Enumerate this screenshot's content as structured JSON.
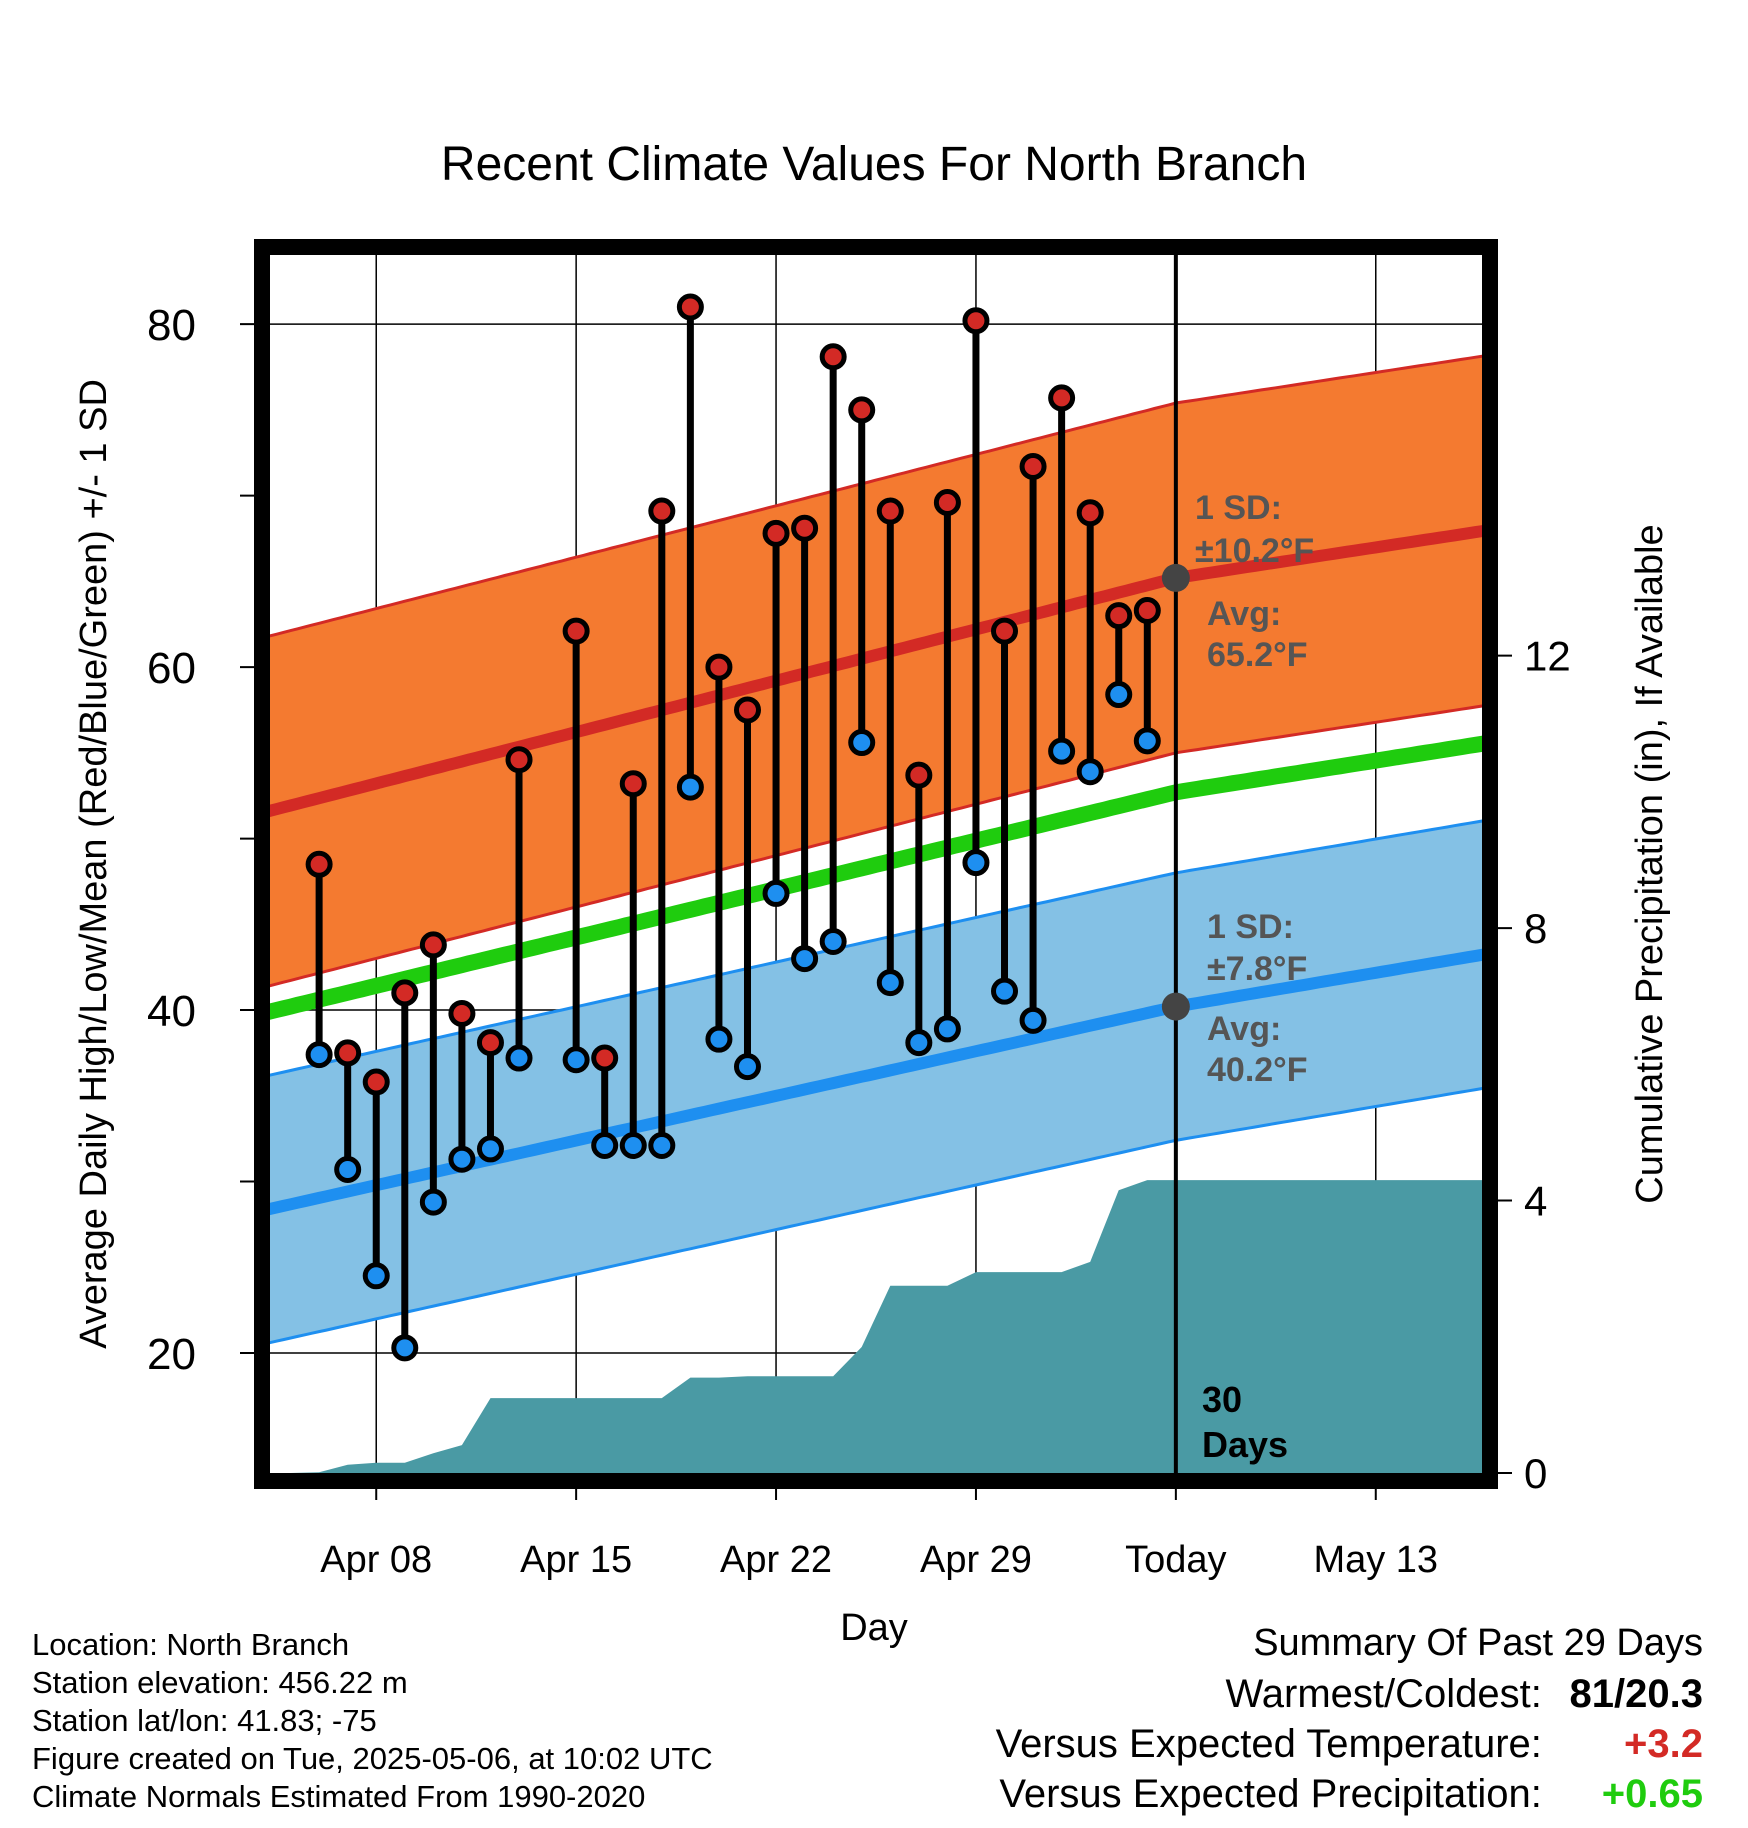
{
  "chart_data": {
    "type": "line",
    "title": "Recent Climate Values For North Branch",
    "xlabel": "Day",
    "ylabel": "Average Daily High/Low/Mean (Red/Blue/Green) +/- 1 SD",
    "y2label": "Cumulative Precipitation (in), If Available",
    "ylim": [
      13,
      84.5
    ],
    "y2lim": [
      0,
      18
    ],
    "y_ticks": [
      20,
      40,
      60,
      80
    ],
    "y2_ticks": [
      0,
      4,
      8,
      12
    ],
    "xlim": [
      "2025-04-04",
      "2025-05-17"
    ],
    "x_ticks": [
      {
        "date": "2025-04-08",
        "label": "Apr 08"
      },
      {
        "date": "2025-04-15",
        "label": "Apr 15"
      },
      {
        "date": "2025-04-22",
        "label": "Apr 22"
      },
      {
        "date": "2025-04-29",
        "label": "Apr 29"
      },
      {
        "date": "2025-05-06",
        "label": "Today"
      },
      {
        "date": "2025-05-13",
        "label": "May 13"
      }
    ],
    "today": "2025-05-06",
    "today_label": [
      "30",
      "Days"
    ],
    "daily": {
      "dates": [
        "2025-04-06",
        "2025-04-07",
        "2025-04-08",
        "2025-04-09",
        "2025-04-10",
        "2025-04-11",
        "2025-04-12",
        "2025-04-13",
        "2025-04-15",
        "2025-04-16",
        "2025-04-17",
        "2025-04-18",
        "2025-04-19",
        "2025-04-20",
        "2025-04-21",
        "2025-04-22",
        "2025-04-23",
        "2025-04-24",
        "2025-04-25",
        "2025-04-26",
        "2025-04-27",
        "2025-04-28",
        "2025-04-29",
        "2025-04-30",
        "2025-05-01",
        "2025-05-02",
        "2025-05-03",
        "2025-05-04",
        "2025-05-05"
      ],
      "high": [
        48.5,
        37.5,
        35.8,
        41,
        43.8,
        39.8,
        38.1,
        54.6,
        62.1,
        37.2,
        53.2,
        69.1,
        81,
        60,
        57.5,
        67.8,
        68.1,
        78.1,
        75,
        69.1,
        53.7,
        69.6,
        80.2,
        62.1,
        71.7,
        75.7,
        69,
        63,
        63.3
      ],
      "low": [
        37.4,
        30.7,
        24.5,
        20.3,
        28.8,
        31.3,
        31.9,
        37.2,
        37.1,
        32.1,
        32.1,
        32.1,
        53,
        38.3,
        36.7,
        46.8,
        43,
        44,
        55.6,
        41.6,
        38.1,
        38.9,
        48.6,
        41.1,
        39.4,
        55.1,
        53.9,
        58.4,
        55.7
      ]
    },
    "normals": {
      "dates": [
        "2025-04-04",
        "2025-05-06",
        "2025-05-17"
      ],
      "high_mean": [
        51.5,
        65.2,
        68.0
      ],
      "high_sd": 10.2,
      "low_mean": [
        28.3,
        40.2,
        43.3
      ],
      "low_sd": 7.8,
      "mean_mean": [
        39.8,
        52.7,
        55.6
      ]
    },
    "precip_cumulative": {
      "dates": [
        "2025-04-05",
        "2025-04-06",
        "2025-04-07",
        "2025-04-08",
        "2025-04-09",
        "2025-04-10",
        "2025-04-11",
        "2025-04-12",
        "2025-04-13",
        "2025-04-14",
        "2025-04-15",
        "2025-04-16",
        "2025-04-17",
        "2025-04-18",
        "2025-04-19",
        "2025-04-20",
        "2025-04-21",
        "2025-04-22",
        "2025-04-23",
        "2025-04-24",
        "2025-04-25",
        "2025-04-26",
        "2025-04-27",
        "2025-04-28",
        "2025-04-29",
        "2025-04-30",
        "2025-05-01",
        "2025-05-02",
        "2025-05-03",
        "2025-05-04",
        "2025-05-05",
        "2025-05-06",
        "2025-05-17"
      ],
      "values": [
        0,
        0.01,
        0.12,
        0.15,
        0.15,
        0.29,
        0.41,
        1.1,
        1.1,
        1.1,
        1.1,
        1.1,
        1.1,
        1.1,
        1.4,
        1.4,
        1.42,
        1.42,
        1.42,
        1.42,
        1.85,
        2.75,
        2.75,
        2.75,
        2.95,
        2.95,
        2.95,
        2.95,
        3.1,
        4.15,
        4.3,
        4.3,
        4.3
      ]
    },
    "annotations": {
      "high_sd": [
        "1 SD:",
        "±10.2°F"
      ],
      "high_avg": [
        "Avg:",
        "65.2°F"
      ],
      "low_sd": [
        "1 SD:",
        "±7.8°F"
      ],
      "low_avg": [
        "Avg:",
        "40.2°F"
      ]
    },
    "colors": {
      "high_band": "#f47a30",
      "high_line": "#d32a25",
      "low_band": "#84c1e5",
      "low_line": "#1e8ff0",
      "mean_line": "#1fcc0e",
      "precip": "#4a9aa4",
      "high_marker": "#d32a25",
      "low_marker": "#1e8ff0",
      "annotation_text": "#555555",
      "avg_marker": "#444444"
    }
  },
  "info": {
    "location": "Location: North Branch",
    "elevation": "Station elevation: 456.22 m",
    "latlon": "Station lat/lon: 41.83; -75",
    "created": "Figure created on Tue, 2025-05-06, at 10:02 UTC",
    "normals": "Climate Normals Estimated From 1990-2020"
  },
  "summary": {
    "title": "Summary Of Past 29 Days",
    "warmest_label": "Warmest/Coldest:",
    "warmest_value": "81/20.3",
    "temp_label": "Versus Expected Temperature:",
    "temp_value": "+3.2",
    "temp_color": "#d32a25",
    "precip_label": "Versus Expected Precipitation:",
    "precip_value": "+0.65",
    "precip_color": "#1fcc0e"
  }
}
